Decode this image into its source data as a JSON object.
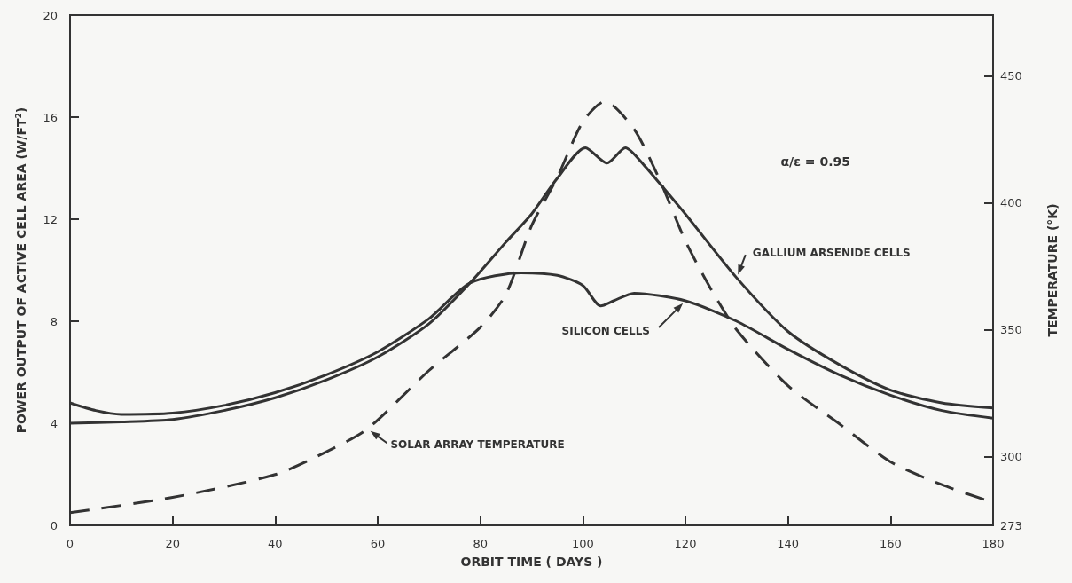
{
  "chart_data": {
    "type": "line",
    "xlabel": "ORBIT TIME ( DAYS )",
    "ylabel": "POWER OUTPUT OF ACTIVE CELL AREA (W/FT$^{2}$)",
    "y2label": "TEMPERATURE (°K)",
    "xlim": [
      0,
      180
    ],
    "xticks": [
      0,
      20,
      40,
      60,
      80,
      100,
      120,
      140,
      160,
      180
    ],
    "ylim": [
      0,
      20
    ],
    "yticks": [
      0,
      4,
      8,
      12,
      16,
      20
    ],
    "y2lim": [
      273,
      474
    ],
    "y2ticks": [
      273,
      300,
      350,
      400,
      450
    ],
    "grid": false,
    "legend": false,
    "marker": "none",
    "annotations": [
      "α/ε = 0.95"
    ],
    "series": [
      {
        "name": "GALLIUM ARSENIDE CELLS",
        "color": "#333333",
        "line_style": "solid",
        "x": [
          0,
          10,
          20,
          30,
          40,
          50,
          60,
          70,
          78,
          85,
          90,
          95,
          100.5,
          104.7,
          108.3,
          112,
          115,
          120,
          130,
          140,
          150,
          160,
          170,
          180
        ],
        "values": [
          4.0,
          4.05,
          4.15,
          4.5,
          5.0,
          5.7,
          6.6,
          7.9,
          9.5,
          11.1,
          12.2,
          13.6,
          14.8,
          14.2,
          14.8,
          14.1,
          13.4,
          12.2,
          9.7,
          7.6,
          6.3,
          5.3,
          4.8,
          4.6
        ]
      },
      {
        "name": "SILICON CELLS",
        "color": "#333333",
        "line_style": "solid",
        "x": [
          0,
          5,
          10,
          20,
          30,
          40,
          50,
          60,
          70,
          78,
          88,
          95,
          100,
          103.5,
          106,
          110,
          120,
          130,
          140,
          150,
          160,
          170,
          180
        ],
        "values": [
          4.8,
          4.5,
          4.35,
          4.4,
          4.7,
          5.2,
          5.9,
          6.8,
          8.1,
          9.5,
          9.9,
          9.8,
          9.4,
          8.6,
          8.8,
          9.1,
          8.8,
          8.0,
          6.9,
          5.9,
          5.1,
          4.5,
          4.2
        ]
      },
      {
        "name": "SOLAR ARRAY TEMPERATURE",
        "color": "#333333",
        "line_style": "dashed",
        "axis": "y2",
        "x": [
          0,
          20,
          40,
          50,
          58,
          70,
          80,
          85,
          90,
          95,
          100,
          104.3,
          110,
          115,
          120,
          125,
          130,
          140,
          150,
          160,
          170,
          180
        ],
        "values": [
          278,
          284,
          293,
          302,
          311,
          334,
          351,
          364,
          391,
          410,
          432,
          440,
          429,
          409,
          385,
          366,
          350,
          328,
          313,
          298,
          289,
          282
        ]
      }
    ]
  }
}
